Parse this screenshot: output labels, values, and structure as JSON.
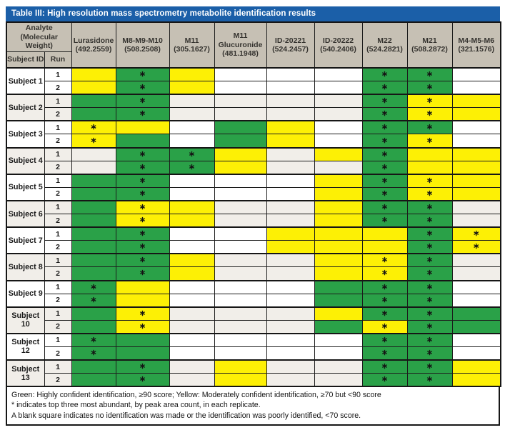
{
  "title": "Table III: High resolution mass spectrometry metabolite identification results",
  "colors": {
    "title_bg": "#1b5fa8",
    "header_bg": "#c6c0b4",
    "green": "#2aa148",
    "yellow": "#fdf005",
    "shaded_row_bg": "#f1eee9",
    "blank_row_bg": "#ffffff"
  },
  "asterisk_glyph": "∗",
  "header": {
    "analyte_label": "Analyte (Molecular Weight)",
    "subject_id_label": "Subject ID",
    "run_label": "Run",
    "analytes": [
      {
        "name": "Lurasidone",
        "mw": "(492.2559)"
      },
      {
        "name": "M8-M9-M10",
        "mw": "(508.2508)"
      },
      {
        "name": "M11",
        "mw": "(305.1627)"
      },
      {
        "name": "M11 Glucuronide",
        "mw": "(481.1948)"
      },
      {
        "name": "ID-20221",
        "mw": "(524.2457)"
      },
      {
        "name": "ID-20222",
        "mw": "(540.2406)"
      },
      {
        "name": "M22",
        "mw": "(524.2821)"
      },
      {
        "name": "M21",
        "mw": "(508.2872)"
      },
      {
        "name": "M4-M5-M6",
        "mw": "(321.1576)"
      }
    ]
  },
  "subjects": [
    {
      "label": "Subject 1",
      "shaded": false,
      "runs": [
        {
          "run": "1",
          "cells": [
            "Y",
            "G*",
            "Y",
            "",
            "",
            "",
            "G*",
            "G*",
            ""
          ]
        },
        {
          "run": "2",
          "cells": [
            "Y",
            "G*",
            "Y",
            "",
            "",
            "",
            "G*",
            "G*",
            ""
          ]
        }
      ]
    },
    {
      "label": "Subject 2",
      "shaded": true,
      "runs": [
        {
          "run": "1",
          "cells": [
            "G",
            "G*",
            "",
            "",
            "",
            "",
            "G*",
            "Y*",
            "Y"
          ]
        },
        {
          "run": "2",
          "cells": [
            "G",
            "G*",
            "",
            "",
            "",
            "",
            "G*",
            "Y*",
            "Y"
          ]
        }
      ]
    },
    {
      "label": "Subject 3",
      "shaded": false,
      "runs": [
        {
          "run": "1",
          "cells": [
            "Y*",
            "Y",
            "",
            "G",
            "Y",
            "",
            "G*",
            "G*",
            ""
          ]
        },
        {
          "run": "2",
          "cells": [
            "Y*",
            "G",
            "",
            "G",
            "Y",
            "",
            "G*",
            "Y*",
            ""
          ]
        }
      ]
    },
    {
      "label": "Subject 4",
      "shaded": true,
      "runs": [
        {
          "run": "1",
          "cells": [
            "",
            "G*",
            "G*",
            "Y",
            "",
            "Y",
            "G*",
            "Y",
            "Y"
          ]
        },
        {
          "run": "2",
          "cells": [
            "",
            "G*",
            "G*",
            "Y",
            "",
            "",
            "G*",
            "Y",
            "Y"
          ]
        }
      ]
    },
    {
      "label": "Subject 5",
      "shaded": false,
      "runs": [
        {
          "run": "1",
          "cells": [
            "G",
            "G*",
            "",
            "",
            "",
            "Y",
            "G*",
            "Y*",
            "Y"
          ]
        },
        {
          "run": "2",
          "cells": [
            "G",
            "G*",
            "",
            "",
            "",
            "Y",
            "G*",
            "Y*",
            "Y"
          ]
        }
      ]
    },
    {
      "label": "Subject 6",
      "shaded": true,
      "runs": [
        {
          "run": "1",
          "cells": [
            "G",
            "Y*",
            "Y",
            "",
            "",
            "Y",
            "G*",
            "G*",
            ""
          ]
        },
        {
          "run": "2",
          "cells": [
            "G",
            "Y*",
            "Y",
            "",
            "",
            "Y",
            "G*",
            "G*",
            ""
          ]
        }
      ]
    },
    {
      "label": "Subject 7",
      "shaded": false,
      "runs": [
        {
          "run": "1",
          "cells": [
            "G",
            "G*",
            "",
            "",
            "Y",
            "Y",
            "Y",
            "G*",
            "Y*"
          ]
        },
        {
          "run": "2",
          "cells": [
            "G",
            "G*",
            "",
            "",
            "Y",
            "Y",
            "Y",
            "G*",
            "Y*"
          ]
        }
      ]
    },
    {
      "label": "Subject 8",
      "shaded": true,
      "runs": [
        {
          "run": "1",
          "cells": [
            "G",
            "G*",
            "Y",
            "",
            "",
            "Y",
            "Y*",
            "G*",
            ""
          ]
        },
        {
          "run": "2",
          "cells": [
            "G",
            "G*",
            "Y",
            "",
            "",
            "Y",
            "Y*",
            "G*",
            ""
          ]
        }
      ]
    },
    {
      "label": "Subject 9",
      "shaded": false,
      "runs": [
        {
          "run": "1",
          "cells": [
            "G*",
            "Y",
            "",
            "",
            "",
            "G",
            "G*",
            "G*",
            ""
          ]
        },
        {
          "run": "2",
          "cells": [
            "G*",
            "Y",
            "",
            "",
            "",
            "G",
            "G*",
            "G*",
            ""
          ]
        }
      ]
    },
    {
      "label": "Subject 10",
      "shaded": true,
      "runs": [
        {
          "run": "1",
          "cells": [
            "G",
            "Y*",
            "",
            "",
            "",
            "Y",
            "G*",
            "G*",
            "G"
          ]
        },
        {
          "run": "2",
          "cells": [
            "G",
            "Y*",
            "",
            "",
            "",
            "G",
            "Y*",
            "G*",
            "G"
          ]
        }
      ]
    },
    {
      "label": "Subject 12",
      "shaded": false,
      "runs": [
        {
          "run": "1",
          "cells": [
            "G*",
            "G",
            "",
            "",
            "",
            "",
            "G*",
            "G*",
            ""
          ]
        },
        {
          "run": "2",
          "cells": [
            "G*",
            "G",
            "",
            "",
            "",
            "",
            "G*",
            "G*",
            ""
          ]
        }
      ]
    },
    {
      "label": "Subject 13",
      "shaded": true,
      "runs": [
        {
          "run": "1",
          "cells": [
            "G",
            "G*",
            "",
            "Y",
            "",
            "",
            "G*",
            "G*",
            "Y"
          ]
        },
        {
          "run": "2",
          "cells": [
            "G",
            "G*",
            "",
            "Y",
            "",
            "",
            "G*",
            "G*",
            "Y"
          ]
        }
      ]
    }
  ],
  "legend": {
    "line1": "Green: Highly confident identification, ≥90 score; Yellow: Moderately confident identification, ≥70 but <90 score",
    "line2": "* indicates top three most abundant, by peak area count, in each replicate.",
    "line3": "A blank square indicates no identification was made or the identification was poorly identified, <70 score."
  }
}
